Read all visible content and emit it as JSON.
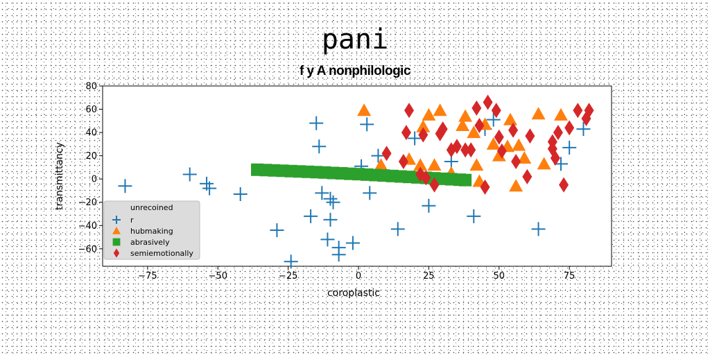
{
  "chart_data": {
    "type": "scatter",
    "title": "pani",
    "subtitle": "f y A nonphilologic",
    "xlabel": "coroplastic",
    "ylabel": "transmittancy",
    "xlim": [
      -91,
      90
    ],
    "ylim": [
      -75,
      80
    ],
    "xticks": [
      -75,
      -50,
      -25,
      0,
      25,
      50,
      75
    ],
    "yticks": [
      -60,
      -40,
      -20,
      0,
      20,
      40,
      60,
      80
    ],
    "grid": false,
    "legend_title": "unrecoined",
    "legend_position": "lower-left",
    "series": [
      {
        "name": "r",
        "marker": "plus",
        "color": "#1f77b4",
        "points": [
          [
            -83,
            -6
          ],
          [
            -60,
            4
          ],
          [
            -54,
            -4
          ],
          [
            -53,
            -8
          ],
          [
            -42,
            -13
          ],
          [
            -29,
            -44
          ],
          [
            -24,
            -71
          ],
          [
            -17,
            -32
          ],
          [
            -15,
            48
          ],
          [
            -14,
            28
          ],
          [
            -13,
            -12
          ],
          [
            -11,
            -52
          ],
          [
            -10,
            -17
          ],
          [
            -10,
            -35
          ],
          [
            -9,
            -20
          ],
          [
            -7,
            -59
          ],
          [
            -7,
            -65
          ],
          [
            -2,
            -55
          ],
          [
            1,
            11
          ],
          [
            3,
            47
          ],
          [
            4,
            -12
          ],
          [
            7,
            20
          ],
          [
            14,
            -43
          ],
          [
            20,
            35
          ],
          [
            25,
            -23
          ],
          [
            33,
            15
          ],
          [
            41,
            -32
          ],
          [
            45,
            43
          ],
          [
            48,
            51
          ],
          [
            64,
            -43
          ],
          [
            72,
            13
          ],
          [
            75,
            27
          ],
          [
            80,
            43
          ]
        ]
      },
      {
        "name": "hubmaking",
        "marker": "triangle",
        "color": "#ff7f0e",
        "points": [
          [
            2,
            59
          ],
          [
            8,
            12
          ],
          [
            18,
            17
          ],
          [
            22,
            12
          ],
          [
            23,
            45
          ],
          [
            25,
            55
          ],
          [
            27,
            12
          ],
          [
            29,
            59
          ],
          [
            33,
            5
          ],
          [
            37,
            46
          ],
          [
            38,
            54
          ],
          [
            41,
            40
          ],
          [
            42,
            12
          ],
          [
            43,
            -2
          ],
          [
            45,
            47
          ],
          [
            48,
            30
          ],
          [
            50,
            20
          ],
          [
            53,
            28
          ],
          [
            54,
            51
          ],
          [
            56,
            -6
          ],
          [
            57,
            29
          ],
          [
            59,
            18
          ],
          [
            64,
            56
          ],
          [
            66,
            13
          ],
          [
            72,
            55
          ]
        ]
      },
      {
        "name": "abrasively",
        "marker": "square",
        "color": "#2ca02c",
        "points": [
          [
            -36,
            8
          ],
          [
            -33,
            7.7
          ],
          [
            -30,
            7.4
          ],
          [
            -27,
            7.1
          ],
          [
            -24,
            6.8
          ],
          [
            -21,
            6.5
          ],
          [
            -18,
            6.2
          ],
          [
            -15,
            5.9
          ],
          [
            -12,
            5.6
          ],
          [
            -9,
            5.2
          ],
          [
            -6,
            4.9
          ],
          [
            -3,
            4.5
          ],
          [
            0,
            4.2
          ],
          [
            3,
            3.8
          ],
          [
            6,
            3.4
          ],
          [
            9,
            3
          ],
          [
            12,
            2.6
          ],
          [
            15,
            2.2
          ],
          [
            18,
            1.8
          ],
          [
            21,
            1.4
          ],
          [
            24,
            1.0
          ],
          [
            27,
            0.6
          ],
          [
            30,
            0.2
          ],
          [
            33,
            -0.2
          ],
          [
            36,
            -0.6
          ],
          [
            38,
            -0.9
          ]
        ]
      },
      {
        "name": "semiemotionally",
        "marker": "diamond",
        "color": "#d62728",
        "points": [
          [
            10,
            22
          ],
          [
            16,
            15
          ],
          [
            17,
            40
          ],
          [
            18,
            59
          ],
          [
            22,
            4
          ],
          [
            23,
            38
          ],
          [
            24,
            1
          ],
          [
            27,
            -5
          ],
          [
            29,
            39
          ],
          [
            30,
            43
          ],
          [
            33,
            25
          ],
          [
            35,
            28
          ],
          [
            38,
            25
          ],
          [
            40,
            25
          ],
          [
            42,
            61
          ],
          [
            43,
            46
          ],
          [
            45,
            -7
          ],
          [
            46,
            66
          ],
          [
            49,
            59
          ],
          [
            50,
            36
          ],
          [
            51,
            24
          ],
          [
            55,
            42
          ],
          [
            56,
            15
          ],
          [
            60,
            2
          ],
          [
            61,
            37
          ],
          [
            69,
            26
          ],
          [
            69,
            32
          ],
          [
            70,
            18
          ],
          [
            71,
            40
          ],
          [
            73,
            -5
          ],
          [
            75,
            44
          ],
          [
            78,
            59
          ],
          [
            81,
            52
          ],
          [
            82,
            59
          ]
        ]
      }
    ]
  }
}
